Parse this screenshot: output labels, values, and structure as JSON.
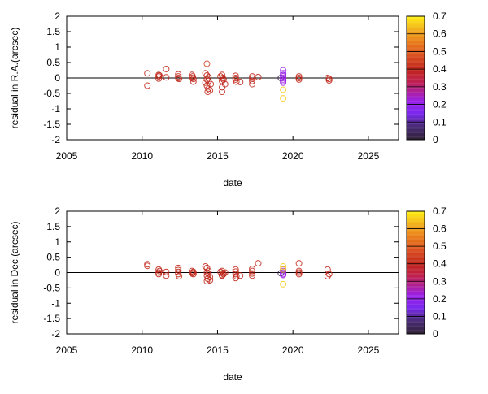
{
  "colorbar": {
    "min": 0,
    "max": 0.7,
    "ticks": [
      "0",
      "0.1",
      "0.2",
      "0.3",
      "0.4",
      "0.5",
      "0.6",
      "0.7"
    ],
    "colormap": [
      [
        0,
        "#2e2233"
      ],
      [
        0.08,
        "#4a2a7a"
      ],
      [
        0.15,
        "#7a28f0"
      ],
      [
        0.22,
        "#9a20e8"
      ],
      [
        0.28,
        "#b02090"
      ],
      [
        0.33,
        "#c02050"
      ],
      [
        0.4,
        "#c02418"
      ],
      [
        0.47,
        "#d84a20"
      ],
      [
        0.55,
        "#e87818"
      ],
      [
        0.62,
        "#f0a818"
      ],
      [
        0.7,
        "#ffee10"
      ]
    ]
  },
  "chart_data": [
    {
      "type": "scatter",
      "xlabel": "date",
      "ylabel": "residual in R.A.(arcsec)",
      "xlim": [
        2005,
        2027
      ],
      "ylim": [
        -2,
        2
      ],
      "xticks": [
        "2005",
        "2010",
        "2015",
        "2020",
        "2025"
      ],
      "yticks": [
        "-2",
        "-1.5",
        "-1",
        "-0.5",
        "0",
        "0.5",
        "1",
        "1.5",
        "2"
      ],
      "zero_line": true,
      "grid": false,
      "legend": "none",
      "points": [
        [
          2010.35,
          0.15,
          0.4
        ],
        [
          2010.35,
          -0.25,
          0.4
        ],
        [
          2011.1,
          0.1,
          0.4
        ],
        [
          2011.1,
          0.05,
          0.4
        ],
        [
          2011.1,
          -0.02,
          0.4
        ],
        [
          2011.15,
          0.08,
          0.4
        ],
        [
          2011.6,
          0.29,
          0.4
        ],
        [
          2011.6,
          0.02,
          0.4
        ],
        [
          2012.4,
          0.12,
          0.4
        ],
        [
          2012.4,
          0.05,
          0.4
        ],
        [
          2012.4,
          0.0,
          0.4
        ],
        [
          2012.45,
          -0.03,
          0.4
        ],
        [
          2013.3,
          0.1,
          0.4
        ],
        [
          2013.35,
          0.05,
          0.4
        ],
        [
          2013.4,
          -0.03,
          0.4
        ],
        [
          2013.3,
          0.0,
          0.4
        ],
        [
          2013.4,
          -0.12,
          0.4
        ],
        [
          2014.3,
          0.46,
          0.45
        ],
        [
          2014.2,
          0.15,
          0.4
        ],
        [
          2014.3,
          0.08,
          0.4
        ],
        [
          2014.4,
          0.02,
          0.4
        ],
        [
          2014.3,
          -0.05,
          0.4
        ],
        [
          2014.4,
          -0.1,
          0.4
        ],
        [
          2014.2,
          -0.15,
          0.4
        ],
        [
          2014.3,
          -0.25,
          0.4
        ],
        [
          2014.4,
          -0.35,
          0.4
        ],
        [
          2014.35,
          -0.45,
          0.4
        ],
        [
          2014.5,
          -0.4,
          0.4
        ],
        [
          2014.55,
          -0.2,
          0.4
        ],
        [
          2015.3,
          0.1,
          0.4
        ],
        [
          2015.2,
          0.05,
          0.4
        ],
        [
          2015.35,
          0.0,
          0.4
        ],
        [
          2015.4,
          -0.05,
          0.4
        ],
        [
          2015.3,
          -0.1,
          0.4
        ],
        [
          2015.5,
          -0.2,
          0.4
        ],
        [
          2015.3,
          -0.3,
          0.4
        ],
        [
          2015.3,
          -0.45,
          0.4
        ],
        [
          2016.2,
          0.07,
          0.4
        ],
        [
          2016.2,
          0.0,
          0.4
        ],
        [
          2016.2,
          -0.05,
          0.4
        ],
        [
          2016.25,
          -0.12,
          0.4
        ],
        [
          2016.5,
          -0.13,
          0.4
        ],
        [
          2017.3,
          0.05,
          0.4
        ],
        [
          2017.3,
          -0.02,
          0.4
        ],
        [
          2017.3,
          -0.1,
          0.4
        ],
        [
          2017.3,
          -0.2,
          0.4
        ],
        [
          2017.7,
          0.03,
          0.4
        ],
        [
          2019.2,
          0.0,
          0.05
        ],
        [
          2019.35,
          0.25,
          0.22
        ],
        [
          2019.35,
          0.15,
          0.22
        ],
        [
          2019.35,
          0.1,
          0.22
        ],
        [
          2019.35,
          0.05,
          0.22
        ],
        [
          2019.35,
          0.0,
          0.22
        ],
        [
          2019.35,
          -0.05,
          0.22
        ],
        [
          2019.35,
          -0.1,
          0.22
        ],
        [
          2019.35,
          -0.15,
          0.22
        ],
        [
          2019.35,
          -0.38,
          0.66
        ],
        [
          2019.35,
          -0.66,
          0.66
        ],
        [
          2020.4,
          0.05,
          0.4
        ],
        [
          2020.4,
          0.0,
          0.4
        ],
        [
          2020.4,
          -0.05,
          0.4
        ],
        [
          2022.3,
          0.0,
          0.4
        ],
        [
          2022.4,
          -0.03,
          0.4
        ],
        [
          2022.4,
          -0.08,
          0.4
        ]
      ]
    },
    {
      "type": "scatter",
      "xlabel": "date",
      "ylabel": "residual in Dec.(arcsec)",
      "xlim": [
        2005,
        2027
      ],
      "ylim": [
        -2,
        2
      ],
      "xticks": [
        "2005",
        "2010",
        "2015",
        "2020",
        "2025"
      ],
      "yticks": [
        "-2",
        "-1.5",
        "-1",
        "-0.5",
        "0",
        "0.5",
        "1",
        "1.5",
        "2"
      ],
      "zero_line": true,
      "grid": false,
      "legend": "none",
      "points": [
        [
          2010.35,
          0.27,
          0.4
        ],
        [
          2010.35,
          0.22,
          0.4
        ],
        [
          2011.1,
          0.1,
          0.4
        ],
        [
          2011.1,
          0.0,
          0.4
        ],
        [
          2011.1,
          -0.05,
          0.4
        ],
        [
          2011.15,
          0.05,
          0.4
        ],
        [
          2011.6,
          -0.1,
          0.4
        ],
        [
          2011.6,
          0.02,
          0.4
        ],
        [
          2012.4,
          0.15,
          0.4
        ],
        [
          2012.4,
          0.08,
          0.4
        ],
        [
          2012.4,
          0.02,
          0.4
        ],
        [
          2012.4,
          -0.05,
          0.4
        ],
        [
          2012.45,
          -0.12,
          0.4
        ],
        [
          2013.3,
          0.05,
          0.4
        ],
        [
          2013.35,
          0.0,
          0.4
        ],
        [
          2013.4,
          -0.05,
          0.4
        ],
        [
          2013.3,
          -0.03,
          0.4
        ],
        [
          2013.4,
          0.02,
          0.4
        ],
        [
          2014.2,
          0.2,
          0.4
        ],
        [
          2014.3,
          0.15,
          0.4
        ],
        [
          2014.4,
          0.05,
          0.4
        ],
        [
          2014.3,
          0.0,
          0.4
        ],
        [
          2014.4,
          -0.05,
          0.4
        ],
        [
          2014.3,
          -0.1,
          0.4
        ],
        [
          2014.5,
          -0.15,
          0.4
        ],
        [
          2014.35,
          -0.2,
          0.4
        ],
        [
          2014.3,
          -0.28,
          0.4
        ],
        [
          2014.5,
          -0.25,
          0.4
        ],
        [
          2015.3,
          0.05,
          0.4
        ],
        [
          2015.2,
          0.02,
          0.4
        ],
        [
          2015.35,
          -0.02,
          0.4
        ],
        [
          2015.4,
          -0.05,
          0.4
        ],
        [
          2015.3,
          -0.08,
          0.4
        ],
        [
          2015.5,
          0.0,
          0.4
        ],
        [
          2015.3,
          -0.1,
          0.4
        ],
        [
          2016.2,
          0.1,
          0.4
        ],
        [
          2016.2,
          0.03,
          0.4
        ],
        [
          2016.2,
          -0.05,
          0.4
        ],
        [
          2016.25,
          -0.12,
          0.4
        ],
        [
          2016.2,
          -0.18,
          0.4
        ],
        [
          2016.5,
          -0.1,
          0.4
        ],
        [
          2017.3,
          0.12,
          0.4
        ],
        [
          2017.3,
          0.05,
          0.4
        ],
        [
          2017.3,
          -0.03,
          0.4
        ],
        [
          2017.3,
          -0.1,
          0.4
        ],
        [
          2017.7,
          0.3,
          0.4
        ],
        [
          2019.2,
          -0.02,
          0.05
        ],
        [
          2019.35,
          0.1,
          0.22
        ],
        [
          2019.35,
          0.05,
          0.22
        ],
        [
          2019.35,
          0.0,
          0.22
        ],
        [
          2019.35,
          -0.05,
          0.22
        ],
        [
          2019.35,
          -0.08,
          0.22
        ],
        [
          2019.35,
          0.2,
          0.66
        ],
        [
          2019.35,
          0.1,
          0.66
        ],
        [
          2019.35,
          -0.38,
          0.66
        ],
        [
          2020.4,
          0.3,
          0.4
        ],
        [
          2020.4,
          0.05,
          0.4
        ],
        [
          2020.4,
          0.0,
          0.4
        ],
        [
          2020.4,
          -0.05,
          0.4
        ],
        [
          2022.3,
          0.1,
          0.4
        ],
        [
          2022.4,
          -0.05,
          0.4
        ],
        [
          2022.3,
          -0.12,
          0.4
        ]
      ]
    }
  ]
}
